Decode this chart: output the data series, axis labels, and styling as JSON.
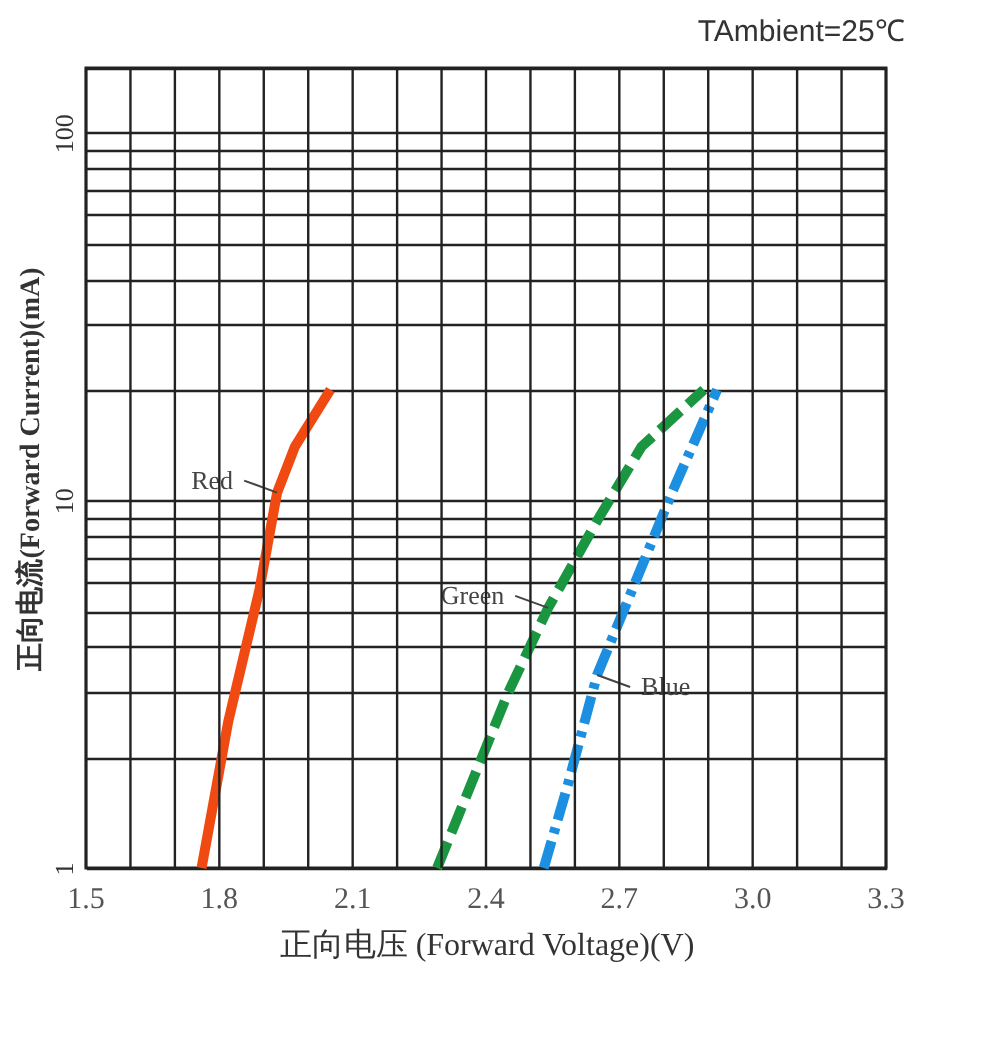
{
  "chart_data": {
    "type": "line",
    "title": "TAmbient=25℃",
    "xlabel": "正向电压 (Forward Voltage)(V)",
    "ylabel": "正向电流(Forward Current)(mA)",
    "log": "y",
    "grid": true,
    "xlim": [
      1.5,
      3.3
    ],
    "xticks": [
      1.5,
      {
        "value": 1.6,
        "label": null
      },
      {
        "value": 1.7,
        "label": null
      },
      1.8,
      {
        "value": 1.9,
        "label": null
      },
      {
        "value": 2.0,
        "label": null
      },
      2.1,
      {
        "value": 2.2,
        "label": null
      },
      {
        "value": 2.3,
        "label": null
      },
      2.4,
      {
        "value": 2.5,
        "label": null
      },
      {
        "value": 2.6,
        "label": null
      },
      2.7,
      {
        "value": 2.8,
        "label": null
      },
      {
        "value": 2.9,
        "label": null
      },
      {
        "value": 3.0,
        "label": "3.0"
      },
      {
        "value": 3.1,
        "label": null
      },
      {
        "value": 3.2,
        "label": null
      },
      3.3
    ],
    "ylim": [
      1,
      150
    ],
    "yticks": [
      1,
      {
        "value": 2,
        "label": null
      },
      {
        "value": 3,
        "label": null
      },
      {
        "value": 4,
        "label": null
      },
      {
        "value": 5,
        "label": null
      },
      {
        "value": 6,
        "label": null
      },
      {
        "value": 7,
        "label": null
      },
      {
        "value": 8,
        "label": null
      },
      {
        "value": 9,
        "label": null
      },
      10,
      {
        "value": 20,
        "label": null
      },
      {
        "value": 30,
        "label": null
      },
      {
        "value": 40,
        "label": null
      },
      {
        "value": 50,
        "label": null
      },
      {
        "value": 60,
        "label": null
      },
      {
        "value": 70,
        "label": null
      },
      {
        "value": 80,
        "label": null
      },
      {
        "value": 90,
        "label": null
      },
      100,
      {
        "value": 150,
        "label": null
      }
    ],
    "series": [
      {
        "name": "Red",
        "color": "#f04a12",
        "line_style": "solid",
        "x": [
          1.76,
          1.82,
          1.89,
          1.93,
          1.97,
          2.05
        ],
        "values": [
          1,
          2.5,
          5.7,
          10.5,
          14,
          20
        ]
      },
      {
        "name": "Green",
        "color": "#1a9640",
        "line_style": "dashed",
        "x": [
          2.29,
          2.45,
          2.54,
          2.65,
          2.75,
          2.89
        ],
        "values": [
          1,
          3,
          5.1,
          8.8,
          14,
          20
        ]
      },
      {
        "name": "Blue",
        "color": "#1c8fe0",
        "line_style": "dashdot",
        "x": [
          2.53,
          2.585,
          2.65,
          2.73,
          2.82,
          2.92
        ],
        "values": [
          1,
          1.7,
          3.35,
          5.75,
          10.6,
          20
        ]
      }
    ]
  }
}
